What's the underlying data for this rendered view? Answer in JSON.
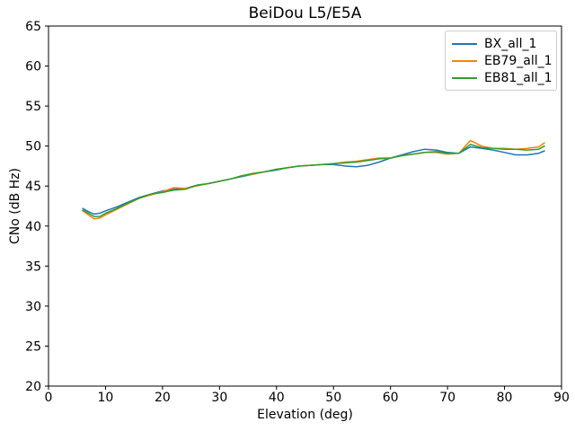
{
  "chart_data": {
    "type": "line",
    "title": "BeiDou L5/E5A",
    "xlabel": "Elevation (deg)",
    "ylabel": "CNo (dB Hz)",
    "xlim": [
      0,
      90
    ],
    "ylim": [
      20,
      65
    ],
    "xticks": [
      0,
      10,
      20,
      30,
      40,
      50,
      60,
      70,
      80,
      90
    ],
    "yticks": [
      20,
      25,
      30,
      35,
      40,
      45,
      50,
      55,
      60,
      65
    ],
    "grid": false,
    "legend_position": "upper-right",
    "line_width": 1.5,
    "x": [
      6,
      7,
      8,
      9,
      10,
      12,
      14,
      16,
      18,
      20,
      22,
      24,
      26,
      28,
      30,
      32,
      34,
      36,
      38,
      40,
      42,
      44,
      46,
      48,
      50,
      52,
      54,
      56,
      58,
      60,
      62,
      64,
      66,
      68,
      70,
      72,
      74,
      76,
      78,
      80,
      82,
      84,
      86,
      87
    ],
    "series": [
      {
        "name": "BX_all_1",
        "color": "#1f77b4",
        "values": [
          42.2,
          41.8,
          41.5,
          41.6,
          41.9,
          42.4,
          43.0,
          43.6,
          44.0,
          44.4,
          44.6,
          44.7,
          45.1,
          45.3,
          45.6,
          45.9,
          46.2,
          46.5,
          46.8,
          47.0,
          47.3,
          47.5,
          47.6,
          47.7,
          47.7,
          47.5,
          47.4,
          47.6,
          48.0,
          48.5,
          48.9,
          49.3,
          49.6,
          49.5,
          49.2,
          49.1,
          49.9,
          49.7,
          49.5,
          49.2,
          48.9,
          48.9,
          49.1,
          49.4
        ]
      },
      {
        "name": "EB79_all_1",
        "color": "#ff7f0e",
        "values": [
          41.9,
          41.4,
          40.9,
          41.0,
          41.4,
          42.1,
          42.8,
          43.5,
          43.9,
          44.3,
          44.8,
          44.7,
          45.0,
          45.3,
          45.6,
          45.9,
          46.3,
          46.5,
          46.8,
          47.1,
          47.3,
          47.5,
          47.6,
          47.7,
          47.8,
          48.0,
          48.1,
          48.3,
          48.5,
          48.5,
          48.8,
          49.0,
          49.2,
          49.2,
          49.0,
          49.1,
          50.7,
          50.0,
          49.7,
          49.7,
          49.6,
          49.7,
          49.9,
          50.4
        ]
      },
      {
        "name": "EB81_all_1",
        "color": "#2ca02c",
        "values": [
          42.0,
          41.6,
          41.2,
          41.2,
          41.6,
          42.2,
          42.9,
          43.5,
          44.0,
          44.2,
          44.5,
          44.6,
          45.1,
          45.3,
          45.6,
          45.9,
          46.3,
          46.6,
          46.8,
          47.1,
          47.3,
          47.5,
          47.6,
          47.7,
          47.8,
          47.9,
          48.0,
          48.2,
          48.4,
          48.5,
          48.8,
          49.0,
          49.2,
          49.3,
          49.1,
          49.1,
          50.2,
          49.8,
          49.7,
          49.6,
          49.6,
          49.5,
          49.6,
          50.0
        ]
      }
    ]
  }
}
